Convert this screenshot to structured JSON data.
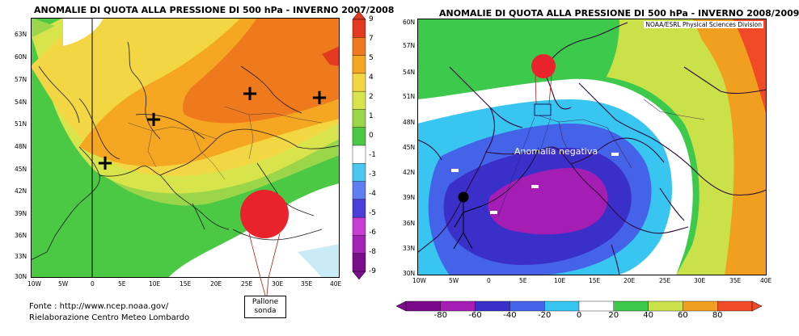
{
  "left_map": {
    "title": "ANOMALIE DI QUOTA ALLA PRESSIONE DI 500 hPa - INVERNO 2007/2008",
    "lat_labels": [
      "63N",
      "60N",
      "57N",
      "54N",
      "51N",
      "48N",
      "45N",
      "42N",
      "39N",
      "36N",
      "33N",
      "30N"
    ],
    "lon_labels": [
      "10W",
      "5W",
      "0",
      "5E",
      "10E",
      "15E",
      "20E",
      "25E",
      "30E",
      "35E",
      "40E"
    ],
    "colorbar_labels": [
      "9",
      "7",
      "5",
      "4",
      "2",
      "1",
      "0",
      "-1",
      "-3",
      "-4",
      "-5",
      "-6",
      "-8",
      "-9"
    ],
    "plus_sign": "+",
    "callout": [
      "Pallone",
      "sonda"
    ]
  },
  "right_map": {
    "title": "ANOMALIE DI QUOTA ALLA PRESSIONE DI 500 hPa - INVERNO 2008/2009",
    "credit": "NOAA/ESRL Physical Sciences Division",
    "lat_labels": [
      "60N",
      "57N",
      "54N",
      "51N",
      "48N",
      "45N",
      "42N",
      "39N",
      "36N",
      "33N",
      "30N"
    ],
    "lon_labels": [
      "10W",
      "5W",
      "0",
      "5E",
      "10E",
      "15E",
      "20E",
      "25E",
      "30E",
      "35E",
      "40E"
    ],
    "annotation": "Anomalia negativa",
    "minus_sign": "-",
    "colorbar_labels": [
      "-80",
      "-60",
      "-40",
      "-20",
      "0",
      "20",
      "40",
      "60",
      "80"
    ]
  },
  "footer": {
    "line1": "Fonte : http://www.ncep.noaa.gov/",
    "line2": "Rielaborazione Centro Meteo Lombardo"
  },
  "colors": {
    "left_scale": [
      "#7a0d8a",
      "#a524b8",
      "#c63fd2",
      "#4a3fd6",
      "#5f7ff0",
      "#4cc7f0",
      "#ffffff",
      "#4cc944",
      "#9bd64a",
      "#d8e44c",
      "#f2d643",
      "#f5a623",
      "#ef7a1e",
      "#e2391f"
    ],
    "right_scale": [
      "#7a0a8a",
      "#a51eb4",
      "#3a2fc9",
      "#4563e8",
      "#38c5f0",
      "#ffffff",
      "#3cc94c",
      "#cbe14a",
      "#f0a01e",
      "#f04a28"
    ],
    "balloon": "#e8232b"
  }
}
